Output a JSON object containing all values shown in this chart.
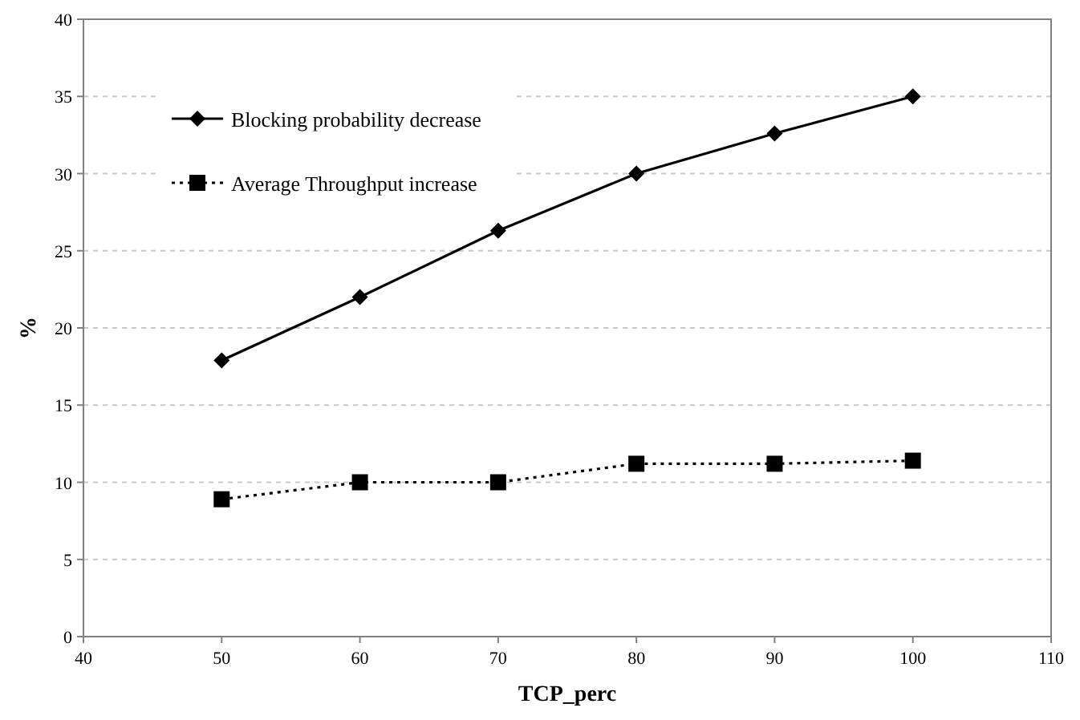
{
  "chart_data": {
    "type": "line",
    "xlabel": "TCP_perc",
    "ylabel": "%",
    "x": [
      50,
      60,
      70,
      80,
      90,
      100
    ],
    "series": [
      {
        "name": "Blocking probability decrease",
        "color": "#000000",
        "values": [
          17.9,
          22,
          26.3,
          30,
          32.6,
          35
        ],
        "marker": "diamond",
        "line_style": "solid"
      },
      {
        "name": "Average Throughput increase",
        "color": "#000000",
        "values": [
          8.9,
          10,
          10,
          11.2,
          11.2,
          11.4
        ],
        "marker": "square",
        "line_style": "dotted"
      }
    ],
    "xlim": [
      40,
      110
    ],
    "xticks": [
      40,
      50,
      60,
      70,
      80,
      90,
      100,
      110
    ],
    "ylim": [
      0,
      40
    ],
    "yticks": [
      0,
      5,
      10,
      15,
      20,
      25,
      30,
      35,
      40
    ],
    "grid": "y",
    "legend": "top left"
  }
}
